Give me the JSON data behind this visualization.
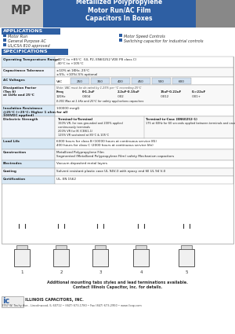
{
  "title": "Metallized Polypropylene\nMotor Run/AC Film\nCapacitors In Boxes",
  "mp_label": "MP",
  "header_blue": "#2E5FA3",
  "header_light_gray": "#C8C8C8",
  "section_blue": "#2E5FA3",
  "applications_label": "APPLICATIONS",
  "applications_left": [
    "Motor Run",
    "General Purpose AC",
    "UL/CSA 810 approved"
  ],
  "applications_right": [
    "Motor Speed Controls",
    "Switching capacitor for industrial controls"
  ],
  "specifications_label": "SPECIFICATIONS",
  "spec_rows": [
    {
      "label": "Operating Temperature Range",
      "value": "-40°C to +85°C  (UL P2, EN60252 VDE P8 class C)\n-40°C to +105°C"
    },
    {
      "label": "Capacitance Tolerance",
      "value": "±10% at 1KHz, 25°C\n±5%, +10%/-5% optional"
    },
    {
      "label": "AC Voltages",
      "value": "VAC | 250 | 350 | 400 | 450 | 500 | 600"
    },
    {
      "label": "Dissipation Factor\n(Tan δ)\nat 1kHz and 25°C",
      "value": "Freq | 0-1.2uF | 2.2uF-0.15uF | 15uF-0.22uF | 0.>22uF\n120Hz | .0004 | .002 | .0012 | .001+\n0.001 Max at 1 kHz and 25°C for safety applications capacitors"
    },
    {
      "label": "Insulation Resistance\n@25°C (+25°C: Higher 1 ohm for all\n100VDC applied)",
      "value": "100000 megΩ"
    },
    {
      "label": "Dielectric Strength",
      "value": "Terminal-to-Terminal | Terminal-to-Case (EN60252-1)\n150% VR, for non-grounded and 200% applied\ncontinuously terminals\n200% VR for IK (CEI61-1) | 175 at 60Hz for 60 seconds applied between terminals and case\n125% VR sustained at 85°C & 105°C"
    },
    {
      "label": "Load Life",
      "value": "6000 hours for class B (10000 hours at continuous service 85)\n400 hours for class C (2000 hours at continuous service life)"
    },
    {
      "label": "Construction",
      "value": "Metallized Polypropylene Film\nSegmented (Metallized Polypropylene Film) safety Mechanism capacitors"
    },
    {
      "label": "Electrodes",
      "value": "Vacuum deposited metal layers"
    },
    {
      "label": "Coating",
      "value": "Solvent resistant plastic case UL 94V-0 with epoxy end fill UL 94 V-0"
    },
    {
      "label": "Certification",
      "value": "UL, EN 1562"
    }
  ],
  "footer_note": "Additional mounting tabs styles and lead terminations available.\nContact Illinois Capacitor, Inc. for details.",
  "footer_company": "ILLINOIS CAPACITORS, INC.",
  "footer_address": "3757 W. Touhy Ave., Lincolnwood, IL 60712 • (847) 673-1780 • Fax (847) 673-2950 • www.ilcap.com",
  "bg_color": "#FFFFFF",
  "table_border": "#999999",
  "blue_square": "#2E5FA3"
}
